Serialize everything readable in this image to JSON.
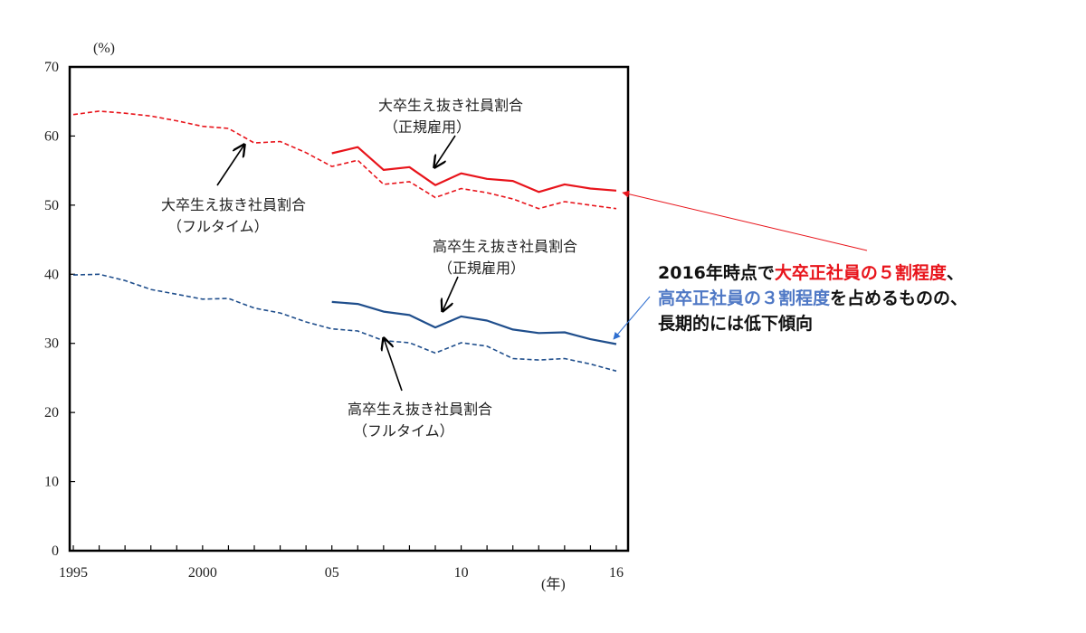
{
  "chart_data": {
    "type": "line",
    "yunit": "(%)",
    "xunit": "(年)",
    "ylim": [
      0,
      70
    ],
    "xlim": [
      1995,
      2016
    ],
    "yticks": [
      "0",
      "10",
      "20",
      "30",
      "40",
      "50",
      "60",
      "70"
    ],
    "xticks": [
      {
        "x": 1995,
        "label": "1995"
      },
      {
        "x": 2000,
        "label": "2000"
      },
      {
        "x": 2005,
        "label": "05"
      },
      {
        "x": 2010,
        "label": "10"
      },
      {
        "x": 2016,
        "label": "16"
      }
    ],
    "grid": false,
    "series": [
      {
        "name": "大卒生え抜き社員割合（フルタイム）",
        "color": "#e8141b",
        "dash": true,
        "x": [
          1995,
          1996,
          1997,
          1998,
          1999,
          2000,
          2001,
          2002,
          2003,
          2004,
          2005,
          2006,
          2007,
          2008,
          2009,
          2010,
          2011,
          2012,
          2013,
          2014,
          2015,
          2016
        ],
        "y": [
          63.1,
          63.6,
          63.3,
          62.9,
          62.2,
          61.4,
          61.1,
          59.0,
          59.2,
          57.6,
          55.6,
          56.5,
          53.0,
          53.4,
          51.1,
          52.4,
          51.8,
          50.9,
          49.5,
          50.5,
          50.0,
          49.5
        ]
      },
      {
        "name": "大卒生え抜き社員割合（正規雇用）",
        "color": "#e8141b",
        "dash": false,
        "x": [
          2005,
          2006,
          2007,
          2008,
          2009,
          2010,
          2011,
          2012,
          2013,
          2014,
          2015,
          2016
        ],
        "y": [
          57.5,
          58.4,
          55.1,
          55.5,
          52.9,
          54.6,
          53.8,
          53.5,
          51.9,
          53.0,
          52.4,
          52.1
        ]
      },
      {
        "name": "高卒生え抜き社員割合（フルタイム）",
        "color": "#1f4e8c",
        "dash": true,
        "x": [
          1995,
          1996,
          1997,
          1998,
          1999,
          2000,
          2001,
          2002,
          2003,
          2004,
          2005,
          2006,
          2007,
          2008,
          2009,
          2010,
          2011,
          2012,
          2013,
          2014,
          2015,
          2016
        ],
        "y": [
          39.9,
          40.0,
          39.1,
          37.8,
          37.1,
          36.4,
          36.5,
          35.1,
          34.4,
          33.1,
          32.1,
          31.8,
          30.4,
          30.1,
          28.6,
          30.1,
          29.6,
          27.8,
          27.6,
          27.8,
          27.0,
          26.0
        ]
      },
      {
        "name": "高卒生え抜き社員割合（正規雇用）",
        "color": "#1f4e8c",
        "dash": false,
        "x": [
          2005,
          2006,
          2007,
          2008,
          2009,
          2010,
          2011,
          2012,
          2013,
          2014,
          2015,
          2016
        ],
        "y": [
          36.0,
          35.7,
          34.6,
          34.1,
          32.3,
          33.9,
          33.3,
          32.0,
          31.5,
          31.6,
          30.6,
          29.9
        ]
      }
    ],
    "annotations": {
      "univ_full_line1": "大卒生え抜き社員割合",
      "univ_full_line2": "（フルタイム）",
      "univ_reg_line1": "大卒生え抜き社員割合",
      "univ_reg_line2": "（正規雇用）",
      "hs_reg_line1": "高卒生え抜き社員割合",
      "hs_reg_line2": "（正規雇用）",
      "hs_full_line1": "高卒生え抜き社員割合",
      "hs_full_line2": "（フルタイム）"
    }
  },
  "callout": {
    "line1_a": "2016年時点で",
    "line1_b": "大卒正社員の５割程度",
    "line1_c": "、",
    "line2_a": "高卒正社員の３割程度",
    "line2_b": "を占めるものの、",
    "line3": "長期的には低下傾向",
    "red_color": "#e8141b",
    "blue_color": "#4f78c5"
  }
}
